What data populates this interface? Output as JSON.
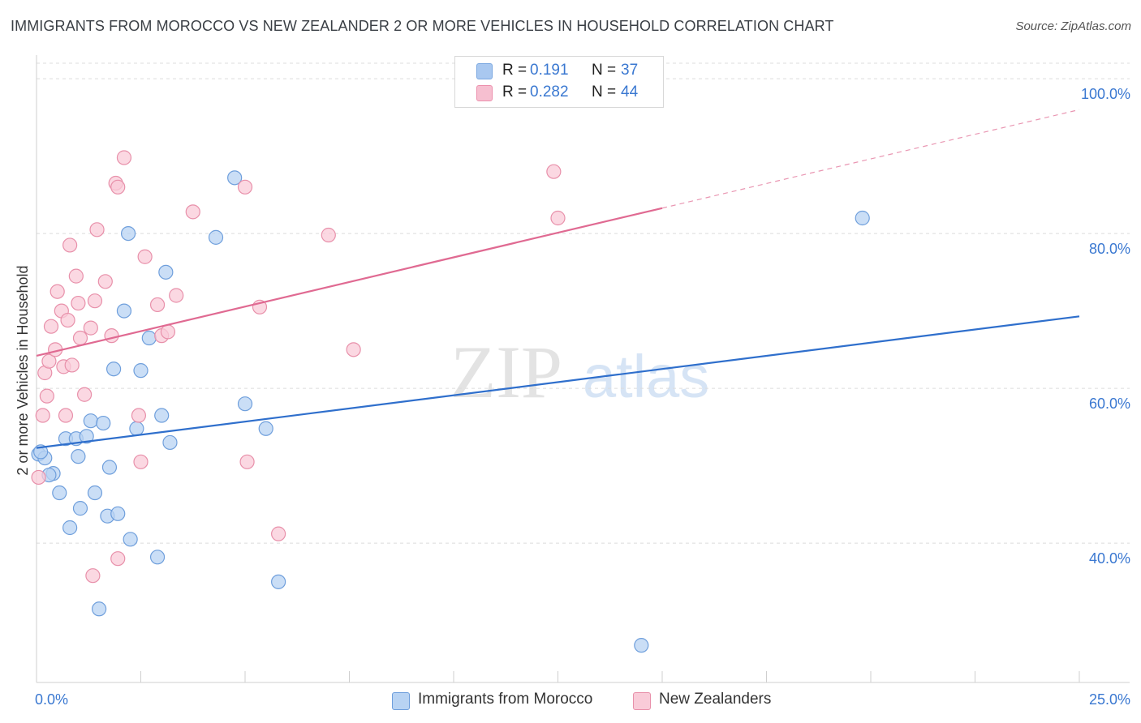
{
  "title": "IMMIGRANTS FROM MOROCCO VS NEW ZEALANDER 2 OR MORE VEHICLES IN HOUSEHOLD CORRELATION CHART",
  "source": "Source: ZipAtlas.com",
  "watermark": {
    "zip": "ZIP",
    "atlas": "atlas"
  },
  "legend": {
    "rows": [
      {
        "r_label": "R =",
        "r_value": "0.191",
        "n_label": "N =",
        "n_value": "37",
        "color": "#a9c8f0",
        "border": "#7aa7e0"
      },
      {
        "r_label": "R =",
        "r_value": "0.282",
        "n_label": "N =",
        "n_value": "44",
        "color": "#f6bfd0",
        "border": "#ec90ad"
      }
    ]
  },
  "bottom_legend": [
    {
      "label": "Immigrants from Morocco",
      "color": "#b8d3f3",
      "border": "#6f9fdc"
    },
    {
      "label": "New Zealanders",
      "color": "#f9cbd8",
      "border": "#e890aa"
    }
  ],
  "chart_data": {
    "type": "scatter",
    "title": "IMMIGRANTS FROM MOROCCO VS NEW ZEALANDER 2 OR MORE VEHICLES IN HOUSEHOLD CORRELATION CHART",
    "xlabel": "",
    "ylabel": "2 or more Vehicles in Household",
    "xlim": [
      0,
      25
    ],
    "ylim": [
      22,
      102
    ],
    "x_tick_labels": [
      {
        "value": 0,
        "label": "0.0%"
      },
      {
        "value": 25,
        "label": "25.0%"
      }
    ],
    "y_tick_labels": [
      {
        "value": 100,
        "label": "100.0%"
      },
      {
        "value": 80,
        "label": "80.0%"
      },
      {
        "value": 60,
        "label": "60.0%"
      },
      {
        "value": 40,
        "label": "40.0%"
      }
    ],
    "grid": true,
    "series": [
      {
        "name": "Immigrants from Morocco",
        "color": "#6f9fdc",
        "fill": "#b8d3f3",
        "trend": {
          "x": [
            0,
            25
          ],
          "y": [
            52.3,
            69.3
          ],
          "color": "#2f6fcc",
          "dashed_from": null
        },
        "points": [
          {
            "x": 0.05,
            "y": 51.5
          },
          {
            "x": 0.2,
            "y": 51.0
          },
          {
            "x": 0.4,
            "y": 49.0
          },
          {
            "x": 0.55,
            "y": 46.5
          },
          {
            "x": 0.7,
            "y": 53.5
          },
          {
            "x": 0.8,
            "y": 42.0
          },
          {
            "x": 0.95,
            "y": 53.5
          },
          {
            "x": 1.0,
            "y": 51.2
          },
          {
            "x": 1.05,
            "y": 44.5
          },
          {
            "x": 1.2,
            "y": 53.8
          },
          {
            "x": 1.3,
            "y": 55.8
          },
          {
            "x": 1.4,
            "y": 46.5
          },
          {
            "x": 1.5,
            "y": 31.5
          },
          {
            "x": 1.6,
            "y": 55.5
          },
          {
            "x": 1.7,
            "y": 43.5
          },
          {
            "x": 1.75,
            "y": 49.8
          },
          {
            "x": 1.85,
            "y": 62.5
          },
          {
            "x": 1.95,
            "y": 43.8
          },
          {
            "x": 2.1,
            "y": 70.0
          },
          {
            "x": 2.2,
            "y": 80.0
          },
          {
            "x": 2.25,
            "y": 40.5
          },
          {
            "x": 2.4,
            "y": 54.8
          },
          {
            "x": 2.5,
            "y": 62.3
          },
          {
            "x": 2.7,
            "y": 66.5
          },
          {
            "x": 2.9,
            "y": 38.2
          },
          {
            "x": 3.0,
            "y": 56.5
          },
          {
            "x": 3.1,
            "y": 75.0
          },
          {
            "x": 3.2,
            "y": 53.0
          },
          {
            "x": 4.3,
            "y": 79.5
          },
          {
            "x": 4.75,
            "y": 87.2
          },
          {
            "x": 5.0,
            "y": 58.0
          },
          {
            "x": 5.5,
            "y": 54.8
          },
          {
            "x": 5.8,
            "y": 35.0
          },
          {
            "x": 14.5,
            "y": 26.8
          },
          {
            "x": 19.8,
            "y": 82.0
          },
          {
            "x": 0.1,
            "y": 51.8
          },
          {
            "x": 0.3,
            "y": 48.8
          }
        ]
      },
      {
        "name": "New Zealanders",
        "color": "#e890aa",
        "fill": "#f9cbd8",
        "trend": {
          "x": [
            0,
            25
          ],
          "y": [
            64.2,
            96.0
          ],
          "color": "#e06a92",
          "dashed_from": 15.0
        },
        "points": [
          {
            "x": 0.05,
            "y": 48.5
          },
          {
            "x": 0.15,
            "y": 56.5
          },
          {
            "x": 0.2,
            "y": 62.0
          },
          {
            "x": 0.25,
            "y": 59.0
          },
          {
            "x": 0.3,
            "y": 63.5
          },
          {
            "x": 0.35,
            "y": 68.0
          },
          {
            "x": 0.45,
            "y": 65.0
          },
          {
            "x": 0.5,
            "y": 72.5
          },
          {
            "x": 0.6,
            "y": 70.0
          },
          {
            "x": 0.65,
            "y": 62.8
          },
          {
            "x": 0.7,
            "y": 56.5
          },
          {
            "x": 0.75,
            "y": 68.8
          },
          {
            "x": 0.8,
            "y": 78.5
          },
          {
            "x": 0.85,
            "y": 63.0
          },
          {
            "x": 0.95,
            "y": 74.5
          },
          {
            "x": 1.0,
            "y": 71.0
          },
          {
            "x": 1.05,
            "y": 66.5
          },
          {
            "x": 1.15,
            "y": 59.2
          },
          {
            "x": 1.3,
            "y": 67.8
          },
          {
            "x": 1.35,
            "y": 35.8
          },
          {
            "x": 1.4,
            "y": 71.3
          },
          {
            "x": 1.45,
            "y": 80.5
          },
          {
            "x": 1.65,
            "y": 73.8
          },
          {
            "x": 1.8,
            "y": 66.8
          },
          {
            "x": 1.9,
            "y": 86.5
          },
          {
            "x": 1.95,
            "y": 86.0
          },
          {
            "x": 1.95,
            "y": 38.0
          },
          {
            "x": 2.1,
            "y": 89.8
          },
          {
            "x": 2.45,
            "y": 56.5
          },
          {
            "x": 2.5,
            "y": 50.5
          },
          {
            "x": 2.6,
            "y": 77.0
          },
          {
            "x": 2.9,
            "y": 70.8
          },
          {
            "x": 3.0,
            "y": 66.8
          },
          {
            "x": 3.15,
            "y": 67.3
          },
          {
            "x": 3.35,
            "y": 72.0
          },
          {
            "x": 3.75,
            "y": 82.8
          },
          {
            "x": 5.0,
            "y": 86.0
          },
          {
            "x": 5.05,
            "y": 50.5
          },
          {
            "x": 5.35,
            "y": 70.5
          },
          {
            "x": 5.8,
            "y": 41.2
          },
          {
            "x": 7.0,
            "y": 79.8
          },
          {
            "x": 7.6,
            "y": 65.0
          },
          {
            "x": 12.4,
            "y": 88.0
          },
          {
            "x": 12.5,
            "y": 82.0
          }
        ]
      }
    ]
  }
}
